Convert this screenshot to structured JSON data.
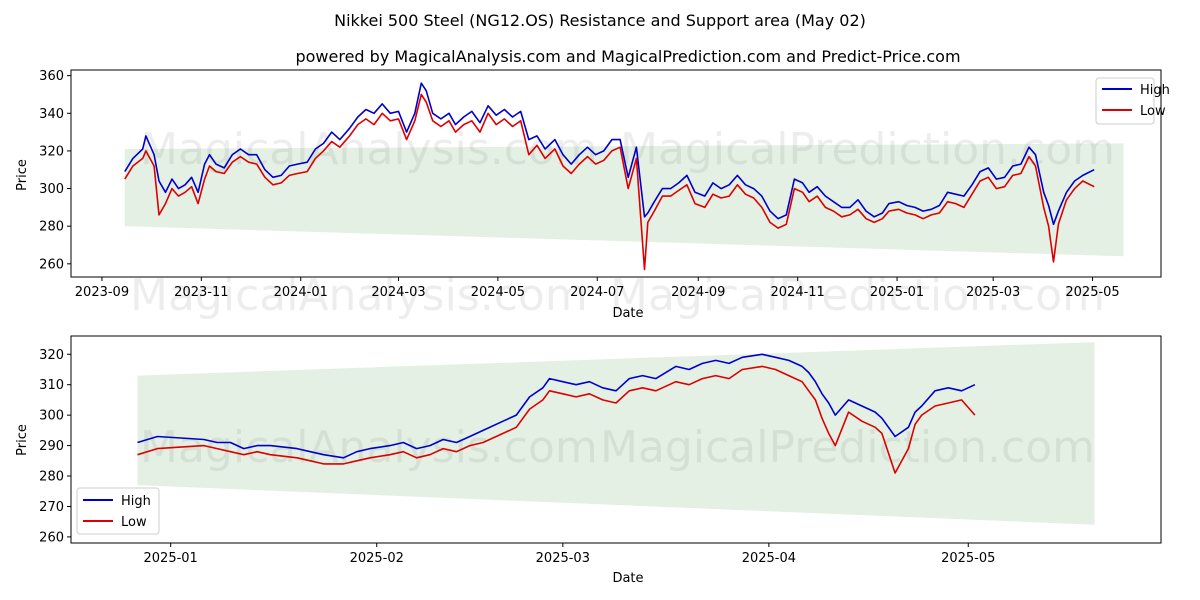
{
  "title": "Nikkei 500 Steel (NG12.OS) Resistance and Support area (May 02)",
  "subtitle": "powered by MagicalAnalysis.com and MagicalPrediction.com and Predict-Price.com",
  "watermarks": [
    "MagicalAnalysis.com",
    "MagicalPrediction.com"
  ],
  "colors": {
    "high": "#0000cc",
    "low": "#dd0000",
    "band": "#2e8b2e"
  },
  "chart_data": [
    {
      "type": "line",
      "xlabel": "Date",
      "ylabel": "Price",
      "x_ticks": [
        "2023-09",
        "2023-11",
        "2024-01",
        "2024-03",
        "2024-05",
        "2024-07",
        "2024-09",
        "2024-11",
        "2025-01",
        "2025-03",
        "2025-05"
      ],
      "y_ticks": [
        260,
        280,
        300,
        320,
        340,
        360
      ],
      "ylim": [
        253,
        363
      ],
      "xlim": [
        "2023-08-13",
        "2025-06-12"
      ],
      "legend": "top-right",
      "band": {
        "x": [
          "2023-09-15",
          "2025-05-20"
        ],
        "upper": [
          321,
          324
        ],
        "lower": [
          280,
          264
        ]
      },
      "series": [
        {
          "name": "High",
          "x": [
            "2023-09-15",
            "2023-09-20",
            "2023-09-26",
            "2023-09-28",
            "2023-10-03",
            "2023-10-06",
            "2023-10-10",
            "2023-10-14",
            "2023-10-18",
            "2023-10-22",
            "2023-10-26",
            "2023-10-30",
            "2023-11-03",
            "2023-11-06",
            "2023-11-10",
            "2023-11-15",
            "2023-11-20",
            "2023-11-25",
            "2023-11-30",
            "2023-12-05",
            "2023-12-10",
            "2023-12-15",
            "2023-12-20",
            "2023-12-25",
            "2023-12-30",
            "2024-01-05",
            "2024-01-10",
            "2024-01-15",
            "2024-01-20",
            "2024-01-25",
            "2024-01-31",
            "2024-02-05",
            "2024-02-10",
            "2024-02-15",
            "2024-02-20",
            "2024-02-25",
            "2024-03-01",
            "2024-03-06",
            "2024-03-11",
            "2024-03-15",
            "2024-03-18",
            "2024-03-22",
            "2024-03-27",
            "2024-04-01",
            "2024-04-05",
            "2024-04-10",
            "2024-04-15",
            "2024-04-20",
            "2024-04-25",
            "2024-04-30",
            "2024-05-05",
            "2024-05-10",
            "2024-05-15",
            "2024-05-20",
            "2024-05-25",
            "2024-05-30",
            "2024-06-05",
            "2024-06-10",
            "2024-06-15",
            "2024-06-20",
            "2024-06-25",
            "2024-06-30",
            "2024-07-05",
            "2024-07-10",
            "2024-07-15",
            "2024-07-20",
            "2024-07-25",
            "2024-07-30",
            "2024-08-01",
            "2024-08-05",
            "2024-08-10",
            "2024-08-15",
            "2024-08-20",
            "2024-08-25",
            "2024-08-30",
            "2024-09-05",
            "2024-09-10",
            "2024-09-15",
            "2024-09-20",
            "2024-09-25",
            "2024-09-30",
            "2024-10-05",
            "2024-10-10",
            "2024-10-15",
            "2024-10-20",
            "2024-10-25",
            "2024-10-30",
            "2024-11-04",
            "2024-11-08",
            "2024-11-13",
            "2024-11-18",
            "2024-11-23",
            "2024-11-28",
            "2024-12-03",
            "2024-12-08",
            "2024-12-13",
            "2024-12-18",
            "2024-12-23",
            "2024-12-27",
            "2025-01-02",
            "2025-01-07",
            "2025-01-12",
            "2025-01-17",
            "2025-01-22",
            "2025-01-27",
            "2025-02-01",
            "2025-02-06",
            "2025-02-11",
            "2025-02-16",
            "2025-02-21",
            "2025-02-26",
            "2025-03-03",
            "2025-03-08",
            "2025-03-13",
            "2025-03-18",
            "2025-03-23",
            "2025-03-27",
            "2025-04-01",
            "2025-04-04",
            "2025-04-07",
            "2025-04-10",
            "2025-04-15",
            "2025-04-20",
            "2025-04-25",
            "2025-05-02"
          ],
          "values": [
            309,
            316,
            321,
            328,
            318,
            304,
            298,
            305,
            300,
            302,
            306,
            298,
            313,
            318,
            313,
            311,
            318,
            321,
            318,
            318,
            310,
            306,
            307,
            312,
            313,
            314,
            321,
            324,
            330,
            326,
            332,
            338,
            342,
            340,
            345,
            340,
            341,
            330,
            340,
            356,
            352,
            340,
            337,
            340,
            334,
            338,
            341,
            335,
            344,
            339,
            342,
            338,
            341,
            326,
            328,
            321,
            326,
            318,
            313,
            318,
            322,
            318,
            320,
            326,
            326,
            306,
            322,
            285,
            287,
            293,
            300,
            300,
            303,
            307,
            298,
            296,
            303,
            300,
            302,
            307,
            302,
            300,
            296,
            288,
            284,
            286,
            305,
            303,
            298,
            301,
            296,
            293,
            290,
            290,
            294,
            288,
            285,
            287,
            292,
            293,
            291,
            290,
            288,
            289,
            291,
            298,
            297,
            296,
            302,
            309,
            311,
            305,
            306,
            312,
            313,
            322,
            318,
            298,
            291,
            281,
            288,
            298,
            304,
            307,
            310
          ]
        },
        {
          "name": "Low",
          "x": [
            "2023-09-15",
            "2023-09-20",
            "2023-09-26",
            "2023-09-28",
            "2023-10-03",
            "2023-10-06",
            "2023-10-10",
            "2023-10-14",
            "2023-10-18",
            "2023-10-22",
            "2023-10-26",
            "2023-10-30",
            "2023-11-03",
            "2023-11-06",
            "2023-11-10",
            "2023-11-15",
            "2023-11-20",
            "2023-11-25",
            "2023-11-30",
            "2023-12-05",
            "2023-12-10",
            "2023-12-15",
            "2023-12-20",
            "2023-12-25",
            "2023-12-30",
            "2024-01-05",
            "2024-01-10",
            "2024-01-15",
            "2024-01-20",
            "2024-01-25",
            "2024-01-31",
            "2024-02-05",
            "2024-02-10",
            "2024-02-15",
            "2024-02-20",
            "2024-02-25",
            "2024-03-01",
            "2024-03-06",
            "2024-03-11",
            "2024-03-15",
            "2024-03-18",
            "2024-03-22",
            "2024-03-27",
            "2024-04-01",
            "2024-04-05",
            "2024-04-10",
            "2024-04-15",
            "2024-04-20",
            "2024-04-25",
            "2024-04-30",
            "2024-05-05",
            "2024-05-10",
            "2024-05-15",
            "2024-05-20",
            "2024-05-25",
            "2024-05-30",
            "2024-06-05",
            "2024-06-10",
            "2024-06-15",
            "2024-06-20",
            "2024-06-25",
            "2024-06-30",
            "2024-07-05",
            "2024-07-10",
            "2024-07-15",
            "2024-07-20",
            "2024-07-25",
            "2024-07-30",
            "2024-08-01",
            "2024-08-05",
            "2024-08-10",
            "2024-08-15",
            "2024-08-20",
            "2024-08-25",
            "2024-08-30",
            "2024-09-05",
            "2024-09-10",
            "2024-09-15",
            "2024-09-20",
            "2024-09-25",
            "2024-09-30",
            "2024-10-05",
            "2024-10-10",
            "2024-10-15",
            "2024-10-20",
            "2024-10-25",
            "2024-10-30",
            "2024-11-04",
            "2024-11-08",
            "2024-11-13",
            "2024-11-18",
            "2024-11-23",
            "2024-11-28",
            "2024-12-03",
            "2024-12-08",
            "2024-12-13",
            "2024-12-18",
            "2024-12-23",
            "2024-12-27",
            "2025-01-02",
            "2025-01-07",
            "2025-01-12",
            "2025-01-17",
            "2025-01-22",
            "2025-01-27",
            "2025-02-01",
            "2025-02-06",
            "2025-02-11",
            "2025-02-16",
            "2025-02-21",
            "2025-02-26",
            "2025-03-03",
            "2025-03-08",
            "2025-03-13",
            "2025-03-18",
            "2025-03-23",
            "2025-03-27",
            "2025-04-01",
            "2025-04-04",
            "2025-04-07",
            "2025-04-10",
            "2025-04-15",
            "2025-04-20",
            "2025-04-25",
            "2025-05-02"
          ],
          "values": [
            305,
            312,
            316,
            320,
            312,
            286,
            292,
            300,
            296,
            298,
            301,
            292,
            305,
            312,
            309,
            308,
            314,
            317,
            314,
            313,
            306,
            302,
            303,
            307,
            308,
            309,
            316,
            320,
            325,
            322,
            328,
            334,
            337,
            334,
            340,
            336,
            337,
            326,
            336,
            350,
            346,
            336,
            333,
            336,
            330,
            334,
            336,
            330,
            340,
            334,
            337,
            333,
            336,
            318,
            323,
            316,
            321,
            312,
            308,
            313,
            317,
            313,
            315,
            320,
            322,
            300,
            316,
            257,
            282,
            288,
            296,
            296,
            299,
            302,
            292,
            290,
            297,
            295,
            296,
            302,
            297,
            295,
            290,
            282,
            279,
            281,
            300,
            298,
            293,
            296,
            290,
            288,
            285,
            286,
            289,
            284,
            282,
            284,
            288,
            289,
            287,
            286,
            284,
            286,
            287,
            293,
            292,
            290,
            297,
            304,
            306,
            300,
            301,
            307,
            308,
            317,
            312,
            290,
            280,
            261,
            281,
            294,
            300,
            304,
            301
          ]
        }
      ]
    },
    {
      "type": "line",
      "xlabel": "Date",
      "ylabel": "Price",
      "x_ticks": [
        "2025-01",
        "2025-02",
        "2025-03",
        "2025-04",
        "2025-05"
      ],
      "y_ticks": [
        260,
        270,
        280,
        290,
        300,
        310,
        320
      ],
      "ylim": [
        258,
        326
      ],
      "xlim": [
        "2024-12-17",
        "2025-05-30"
      ],
      "legend": "bottom-left",
      "band": {
        "x": [
          "2024-12-27",
          "2025-05-20"
        ],
        "upper": [
          313,
          324
        ],
        "lower": [
          277,
          264
        ]
      },
      "series": [
        {
          "name": "High",
          "x": [
            "2024-12-27",
            "2024-12-30",
            "2025-01-06",
            "2025-01-08",
            "2025-01-10",
            "2025-01-12",
            "2025-01-14",
            "2025-01-16",
            "2025-01-20",
            "2025-01-22",
            "2025-01-24",
            "2025-01-27",
            "2025-01-29",
            "2025-01-31",
            "2025-02-03",
            "2025-02-05",
            "2025-02-07",
            "2025-02-09",
            "2025-02-11",
            "2025-02-13",
            "2025-02-15",
            "2025-02-17",
            "2025-02-20",
            "2025-02-22",
            "2025-02-24",
            "2025-02-26",
            "2025-02-27",
            "2025-03-01",
            "2025-03-03",
            "2025-03-05",
            "2025-03-07",
            "2025-03-09",
            "2025-03-11",
            "2025-03-13",
            "2025-03-15",
            "2025-03-18",
            "2025-03-20",
            "2025-03-22",
            "2025-03-24",
            "2025-03-26",
            "2025-03-28",
            "2025-03-31",
            "2025-04-02",
            "2025-04-04",
            "2025-04-06",
            "2025-04-07",
            "2025-04-08",
            "2025-04-09",
            "2025-04-10",
            "2025-04-11",
            "2025-04-13",
            "2025-04-15",
            "2025-04-17",
            "2025-04-18",
            "2025-04-20",
            "2025-04-22",
            "2025-04-23",
            "2025-04-24",
            "2025-04-26",
            "2025-04-28",
            "2025-04-30",
            "2025-05-02"
          ],
          "values": [
            291,
            293,
            292,
            291,
            291,
            289,
            290,
            290,
            289,
            288,
            287,
            286,
            288,
            289,
            290,
            291,
            289,
            290,
            292,
            291,
            293,
            295,
            298,
            300,
            306,
            309,
            312,
            311,
            310,
            311,
            309,
            308,
            312,
            313,
            312,
            316,
            315,
            317,
            318,
            317,
            319,
            320,
            319,
            318,
            316,
            314,
            311,
            307,
            304,
            300,
            305,
            303,
            301,
            299,
            293,
            296,
            301,
            303,
            308,
            309,
            308,
            310
          ]
        },
        {
          "name": "Low",
          "x": [
            "2024-12-27",
            "2024-12-30",
            "2025-01-06",
            "2025-01-08",
            "2025-01-10",
            "2025-01-12",
            "2025-01-14",
            "2025-01-16",
            "2025-01-20",
            "2025-01-22",
            "2025-01-24",
            "2025-01-27",
            "2025-01-29",
            "2025-01-31",
            "2025-02-03",
            "2025-02-05",
            "2025-02-07",
            "2025-02-09",
            "2025-02-11",
            "2025-02-13",
            "2025-02-15",
            "2025-02-17",
            "2025-02-20",
            "2025-02-22",
            "2025-02-24",
            "2025-02-26",
            "2025-02-27",
            "2025-03-01",
            "2025-03-03",
            "2025-03-05",
            "2025-03-07",
            "2025-03-09",
            "2025-03-11",
            "2025-03-13",
            "2025-03-15",
            "2025-03-18",
            "2025-03-20",
            "2025-03-22",
            "2025-03-24",
            "2025-03-26",
            "2025-03-28",
            "2025-03-31",
            "2025-04-02",
            "2025-04-04",
            "2025-04-06",
            "2025-04-07",
            "2025-04-08",
            "2025-04-09",
            "2025-04-10",
            "2025-04-11",
            "2025-04-13",
            "2025-04-15",
            "2025-04-17",
            "2025-04-18",
            "2025-04-20",
            "2025-04-22",
            "2025-04-23",
            "2025-04-24",
            "2025-04-26",
            "2025-04-28",
            "2025-04-30",
            "2025-05-02"
          ],
          "values": [
            287,
            289,
            290,
            289,
            288,
            287,
            288,
            287,
            286,
            285,
            284,
            284,
            285,
            286,
            287,
            288,
            286,
            287,
            289,
            288,
            290,
            291,
            294,
            296,
            302,
            305,
            308,
            307,
            306,
            307,
            305,
            304,
            308,
            309,
            308,
            311,
            310,
            312,
            313,
            312,
            315,
            316,
            315,
            313,
            311,
            308,
            305,
            299,
            294,
            290,
            301,
            298,
            296,
            294,
            281,
            289,
            297,
            300,
            303,
            304,
            305,
            300
          ]
        }
      ]
    }
  ]
}
